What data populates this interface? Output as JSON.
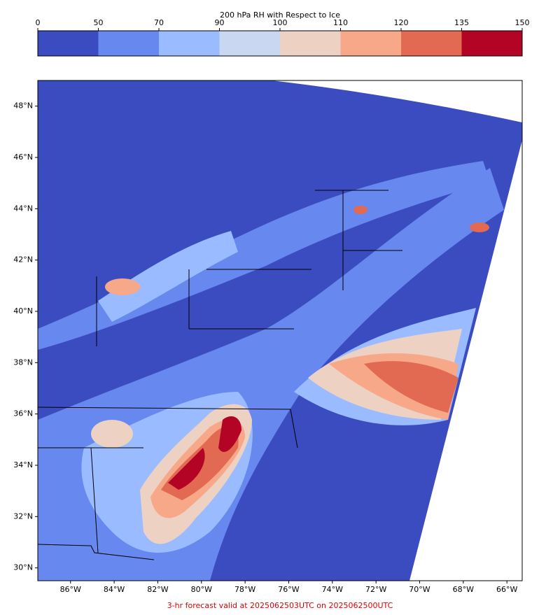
{
  "colorbar": {
    "title": "200 hPa RH with Respect to Ice",
    "ticks": [
      0,
      50,
      70,
      90,
      100,
      110,
      120,
      135,
      150
    ],
    "colors": [
      "#3b4cc0",
      "#6788ee",
      "#9abbff",
      "#c9d7f0",
      "#edd1c2",
      "#f7a889",
      "#e26952",
      "#b40426"
    ]
  },
  "map": {
    "lat_lim": [
      29.5,
      49.0
    ],
    "lon_lim": [
      -87.5,
      -65.3
    ],
    "lat_ticks": [
      {
        "value": 30,
        "label": "30°N"
      },
      {
        "value": 32,
        "label": "32°N"
      },
      {
        "value": 34,
        "label": "34°N"
      },
      {
        "value": 36,
        "label": "36°N"
      },
      {
        "value": 38,
        "label": "38°N"
      },
      {
        "value": 40,
        "label": "40°N"
      },
      {
        "value": 42,
        "label": "42°N"
      },
      {
        "value": 44,
        "label": "44°N"
      },
      {
        "value": 46,
        "label": "46°N"
      },
      {
        "value": 48,
        "label": "48°N"
      }
    ],
    "lon_ticks": [
      {
        "value": -86,
        "label": "86°W"
      },
      {
        "value": -84,
        "label": "84°W"
      },
      {
        "value": -82,
        "label": "82°W"
      },
      {
        "value": -80,
        "label": "80°W"
      },
      {
        "value": -78,
        "label": "78°W"
      },
      {
        "value": -76,
        "label": "76°W"
      },
      {
        "value": -74,
        "label": "74°W"
      },
      {
        "value": -72,
        "label": "72°W"
      },
      {
        "value": -70,
        "label": "70°W"
      },
      {
        "value": -68,
        "label": "68°W"
      },
      {
        "value": -66,
        "label": "66°W"
      }
    ]
  },
  "footer": "3-hr forecast valid at 2025062503UTC on 2025062500UTC"
}
